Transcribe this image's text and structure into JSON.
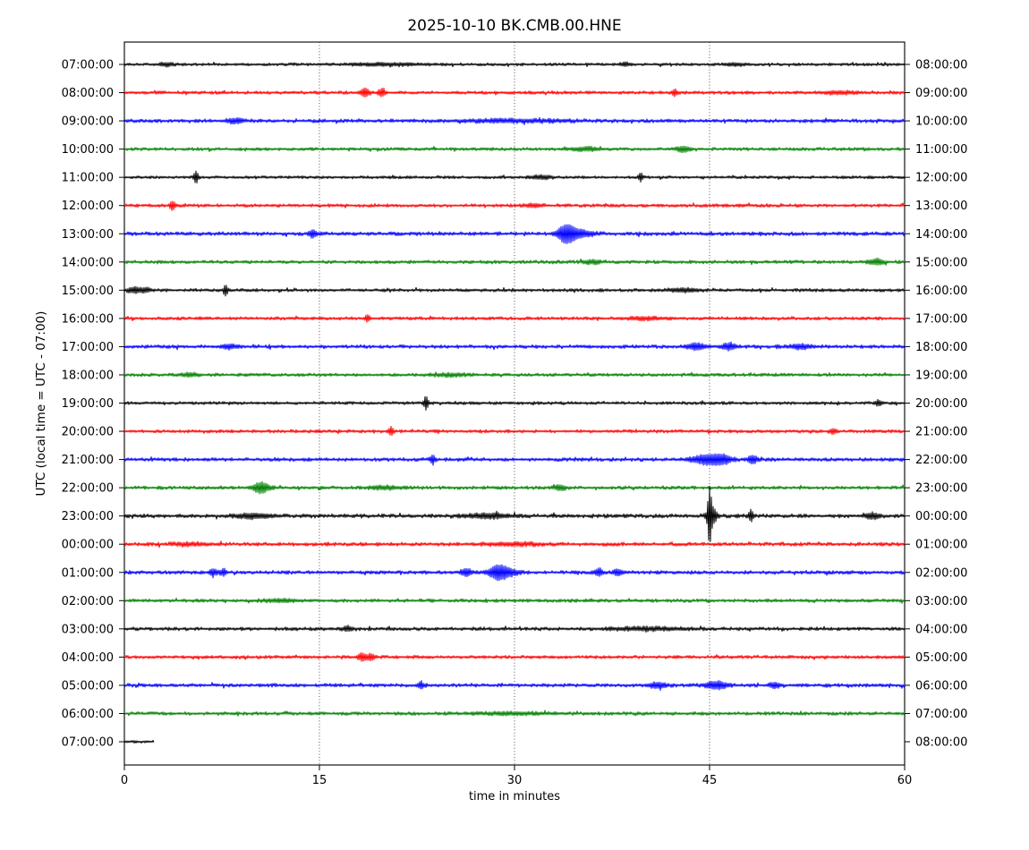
{
  "title": "2025-10-10 BK.CMB.00.HNE",
  "chart_data": {
    "type": "line",
    "subtype": "helicorder-dayplot",
    "title": "2025-10-10 BK.CMB.00.HNE",
    "xlabel": "time in minutes",
    "ylabel": "UTC (local time = UTC - 07:00)",
    "x_ticks": [
      0,
      15,
      30,
      45,
      60
    ],
    "x_range": [
      0,
      60
    ],
    "grid_minutes": [
      15,
      30,
      45
    ],
    "grid_style": "dotted",
    "row_interval_minutes": 60,
    "color_cycle": [
      "#000000",
      "#ff0000",
      "#0000ff",
      "#008000"
    ],
    "rows": [
      {
        "left_label": "07:00:00",
        "right_label": "08:00:00",
        "color": "#000000",
        "noise": 1.2,
        "extent": [
          0,
          60
        ],
        "events": [
          [
            3.2,
            1.5,
            0.4
          ],
          [
            20,
            1.0,
            2.0
          ],
          [
            38.5,
            1.5,
            0.3
          ],
          [
            47,
            1.2,
            0.5
          ]
        ]
      },
      {
        "left_label": "08:00:00",
        "right_label": "09:00:00",
        "color": "#ff0000",
        "noise": 1.4,
        "extent": [
          0,
          60
        ],
        "events": [
          [
            18.5,
            4,
            0.25
          ],
          [
            19.8,
            3.5,
            0.2
          ],
          [
            42.3,
            3,
            0.15
          ],
          [
            55,
            1.2,
            1.0
          ]
        ]
      },
      {
        "left_label": "09:00:00",
        "right_label": "10:00:00",
        "color": "#0000ff",
        "noise": 1.6,
        "extent": [
          0,
          60
        ],
        "events": [
          [
            8.5,
            2,
            0.5
          ],
          [
            30,
            1.2,
            3.0
          ]
        ]
      },
      {
        "left_label": "10:00:00",
        "right_label": "11:00:00",
        "color": "#008000",
        "noise": 1.4,
        "extent": [
          0,
          60
        ],
        "events": [
          [
            35.5,
            1.5,
            0.8
          ],
          [
            43,
            2.5,
            0.4
          ]
        ]
      },
      {
        "left_label": "11:00:00",
        "right_label": "12:00:00",
        "color": "#000000",
        "noise": 1.2,
        "extent": [
          0,
          60
        ],
        "events": [
          [
            5.5,
            6,
            0.12
          ],
          [
            32,
            1.5,
            0.6
          ],
          [
            39.7,
            4,
            0.12
          ]
        ]
      },
      {
        "left_label": "12:00:00",
        "right_label": "13:00:00",
        "color": "#ff0000",
        "noise": 1.4,
        "extent": [
          0,
          60
        ],
        "events": [
          [
            3.7,
            4,
            0.15
          ],
          [
            31.5,
            1.5,
            0.5
          ]
        ]
      },
      {
        "left_label": "13:00:00",
        "right_label": "14:00:00",
        "color": "#0000ff",
        "noise": 1.7,
        "extent": [
          0,
          60
        ],
        "events": [
          [
            14.5,
            3.5,
            0.2
          ],
          [
            34,
            8,
            0.5
          ],
          [
            35,
            3,
            0.8
          ]
        ]
      },
      {
        "left_label": "14:00:00",
        "right_label": "15:00:00",
        "color": "#008000",
        "noise": 1.5,
        "extent": [
          0,
          60
        ],
        "events": [
          [
            36,
            1.5,
            0.5
          ],
          [
            57.8,
            2.5,
            0.4
          ]
        ]
      },
      {
        "left_label": "15:00:00",
        "right_label": "16:00:00",
        "color": "#000000",
        "noise": 1.4,
        "extent": [
          0,
          60
        ],
        "events": [
          [
            0.8,
            2.5,
            0.3
          ],
          [
            1.6,
            2,
            0.3
          ],
          [
            7.8,
            5,
            0.12
          ],
          [
            43,
            1.5,
            0.8
          ]
        ]
      },
      {
        "left_label": "16:00:00",
        "right_label": "17:00:00",
        "color": "#ff0000",
        "noise": 1.4,
        "extent": [
          0,
          60
        ],
        "events": [
          [
            18.7,
            3,
            0.15
          ],
          [
            40,
            1.2,
            1.0
          ]
        ]
      },
      {
        "left_label": "17:00:00",
        "right_label": "18:00:00",
        "color": "#0000ff",
        "noise": 1.6,
        "extent": [
          0,
          60
        ],
        "events": [
          [
            8,
            2,
            0.4
          ],
          [
            44,
            3,
            0.5
          ],
          [
            46.5,
            3,
            0.4
          ],
          [
            52,
            2,
            0.6
          ]
        ]
      },
      {
        "left_label": "18:00:00",
        "right_label": "19:00:00",
        "color": "#008000",
        "noise": 1.4,
        "extent": [
          0,
          60
        ],
        "events": [
          [
            5,
            1.5,
            0.5
          ],
          [
            25,
            1.2,
            1.0
          ]
        ]
      },
      {
        "left_label": "19:00:00",
        "right_label": "20:00:00",
        "color": "#000000",
        "noise": 1.3,
        "extent": [
          0,
          60
        ],
        "events": [
          [
            23.2,
            7,
            0.12
          ],
          [
            58,
            2.5,
            0.2
          ]
        ]
      },
      {
        "left_label": "20:00:00",
        "right_label": "21:00:00",
        "color": "#ff0000",
        "noise": 1.4,
        "extent": [
          0,
          60
        ],
        "events": [
          [
            20.5,
            4,
            0.15
          ],
          [
            54.5,
            2.5,
            0.2
          ]
        ]
      },
      {
        "left_label": "21:00:00",
        "right_label": "22:00:00",
        "color": "#0000ff",
        "noise": 1.6,
        "extent": [
          0,
          60
        ],
        "events": [
          [
            23.7,
            4,
            0.15
          ],
          [
            44.8,
            4.5,
            0.8
          ],
          [
            46,
            3.5,
            0.5
          ],
          [
            48.3,
            4,
            0.25
          ]
        ]
      },
      {
        "left_label": "22:00:00",
        "right_label": "23:00:00",
        "color": "#008000",
        "noise": 1.5,
        "extent": [
          0,
          60
        ],
        "events": [
          [
            10.5,
            5,
            0.45
          ],
          [
            20,
            1.5,
            0.8
          ],
          [
            33.5,
            2.5,
            0.3
          ]
        ]
      },
      {
        "left_label": "23:00:00",
        "right_label": "00:00:00",
        "color": "#000000",
        "noise": 1.8,
        "extent": [
          0,
          60
        ],
        "events": [
          [
            10,
            2,
            1.0
          ],
          [
            28,
            2,
            1.2
          ],
          [
            45.0,
            23,
            0.1
          ],
          [
            45.15,
            10,
            0.25
          ],
          [
            48.2,
            6,
            0.12
          ],
          [
            57.5,
            2.5,
            0.4
          ]
        ]
      },
      {
        "left_label": "00:00:00",
        "right_label": "01:00:00",
        "color": "#ff0000",
        "noise": 1.7,
        "extent": [
          0,
          60
        ],
        "events": [
          [
            5,
            1.2,
            1.0
          ],
          [
            30,
            1.2,
            1.5
          ]
        ]
      },
      {
        "left_label": "01:00:00",
        "right_label": "02:00:00",
        "color": "#0000ff",
        "noise": 1.6,
        "extent": [
          0,
          60
        ],
        "events": [
          [
            6.8,
            3,
            0.2
          ],
          [
            7.6,
            2.5,
            0.2
          ],
          [
            26.3,
            3.5,
            0.3
          ],
          [
            28.7,
            6,
            0.5
          ],
          [
            29.5,
            3,
            0.6
          ],
          [
            36.5,
            3.5,
            0.2
          ],
          [
            38,
            2.5,
            0.3
          ]
        ]
      },
      {
        "left_label": "02:00:00",
        "right_label": "03:00:00",
        "color": "#008000",
        "noise": 1.5,
        "extent": [
          0,
          60
        ],
        "events": [
          [
            12,
            1.2,
            1.0
          ]
        ]
      },
      {
        "left_label": "03:00:00",
        "right_label": "04:00:00",
        "color": "#000000",
        "noise": 1.6,
        "extent": [
          0,
          60
        ],
        "events": [
          [
            17.2,
            2,
            0.3
          ],
          [
            40,
            1.2,
            2.0
          ]
        ]
      },
      {
        "left_label": "04:00:00",
        "right_label": "05:00:00",
        "color": "#ff0000",
        "noise": 1.4,
        "extent": [
          0,
          60
        ],
        "events": [
          [
            18.3,
            3.5,
            0.25
          ],
          [
            19,
            3,
            0.2
          ]
        ]
      },
      {
        "left_label": "05:00:00",
        "right_label": "06:00:00",
        "color": "#0000ff",
        "noise": 1.6,
        "extent": [
          0,
          60
        ],
        "events": [
          [
            22.8,
            2.5,
            0.2
          ],
          [
            41,
            2.5,
            0.5
          ],
          [
            45.5,
            3.5,
            0.6
          ],
          [
            50,
            2.5,
            0.3
          ]
        ]
      },
      {
        "left_label": "06:00:00",
        "right_label": "07:00:00",
        "color": "#008000",
        "noise": 1.5,
        "extent": [
          0,
          60
        ],
        "events": [
          [
            30,
            1.0,
            2.0
          ]
        ]
      },
      {
        "left_label": "07:00:00",
        "right_label": "08:00:00",
        "color": "#000000",
        "noise": 1.1,
        "extent": [
          0,
          2.3
        ],
        "events": []
      }
    ]
  }
}
